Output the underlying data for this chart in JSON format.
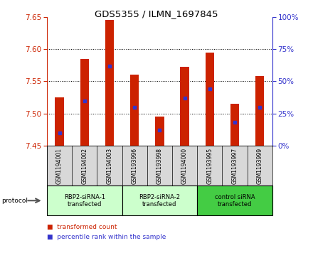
{
  "title": "GDS5355 / ILMN_1697845",
  "samples": [
    "GSM1194001",
    "GSM1194002",
    "GSM1194003",
    "GSM1193996",
    "GSM1193998",
    "GSM1194000",
    "GSM1193995",
    "GSM1193997",
    "GSM1193999"
  ],
  "bar_values": [
    7.525,
    7.585,
    7.645,
    7.56,
    7.495,
    7.572,
    7.595,
    7.515,
    7.558
  ],
  "bar_bottom": 7.45,
  "percentile_values": [
    10,
    35,
    62,
    30,
    12,
    37,
    44,
    18,
    30
  ],
  "ylim": [
    7.45,
    7.65
  ],
  "y2lim": [
    0,
    100
  ],
  "yticks": [
    7.45,
    7.5,
    7.55,
    7.6,
    7.65
  ],
  "y2ticks": [
    0,
    25,
    50,
    75,
    100
  ],
  "bar_color": "#cc2200",
  "percentile_color": "#3333cc",
  "groups": [
    {
      "label": "RBP2-siRNA-1\ntransfected",
      "start": 0,
      "end": 3,
      "color": "#ccffcc"
    },
    {
      "label": "RBP2-siRNA-2\ntransfected",
      "start": 3,
      "end": 6,
      "color": "#ccffcc"
    },
    {
      "label": "control siRNA\ntransfected",
      "start": 6,
      "end": 9,
      "color": "#44cc44"
    }
  ],
  "legend_items": [
    {
      "label": "transformed count",
      "color": "#cc2200"
    },
    {
      "label": "percentile rank within the sample",
      "color": "#3333cc"
    }
  ],
  "protocol_label": "protocol",
  "sample_bg_color": "#d8d8d8",
  "plot_bg_color": "#ffffff",
  "left_axis_color": "#cc2200",
  "right_axis_color": "#3333cc",
  "bar_width": 0.35
}
